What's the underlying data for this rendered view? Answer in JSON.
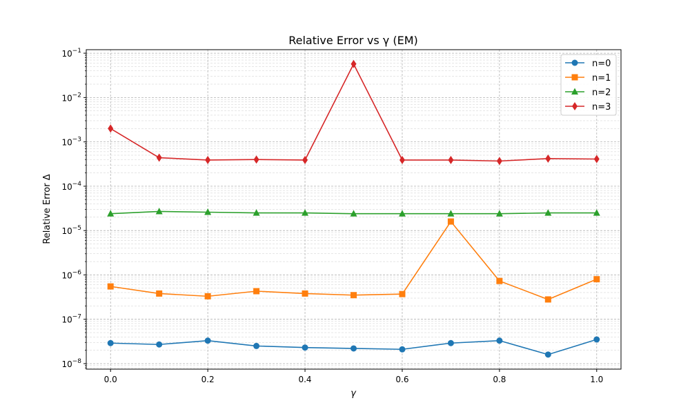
{
  "chart_data": {
    "type": "line",
    "title": "Relative Error vs γ (EM)",
    "xlabel": "γ",
    "ylabel": "Relative Error Δ",
    "y_scale": "log",
    "xlim": [
      -0.05,
      1.05
    ],
    "ylim": [
      7.5e-09,
      0.12
    ],
    "x_ticks": [
      "0.0",
      "0.2",
      "0.4",
      "0.6",
      "0.8",
      "1.0"
    ],
    "y_ticks": [
      {
        "mant": "10",
        "exp": "−8",
        "value": 1e-08
      },
      {
        "mant": "10",
        "exp": "−7",
        "value": 1e-07
      },
      {
        "mant": "10",
        "exp": "−6",
        "value": 1e-06
      },
      {
        "mant": "10",
        "exp": "−5",
        "value": 1e-05
      },
      {
        "mant": "10",
        "exp": "−4",
        "value": 0.0001
      },
      {
        "mant": "10",
        "exp": "−3",
        "value": 0.001
      },
      {
        "mant": "10",
        "exp": "−2",
        "value": 0.01
      },
      {
        "mant": "10",
        "exp": "−1",
        "value": 0.1
      }
    ],
    "grid": true,
    "legend_position": "top-right",
    "x": [
      0.0,
      0.1,
      0.2,
      0.3,
      0.4,
      0.5,
      0.6,
      0.7,
      0.8,
      0.9,
      1.0
    ],
    "series": [
      {
        "name": "n=0",
        "color": "#1f77b4",
        "marker": "circle",
        "values": [
          2.9e-08,
          2.7e-08,
          3.3e-08,
          2.5e-08,
          2.3e-08,
          2.2e-08,
          2.1e-08,
          2.9e-08,
          3.3e-08,
          1.6e-08,
          3.5e-08
        ]
      },
      {
        "name": "n=1",
        "color": "#ff7f0e",
        "marker": "square",
        "values": [
          5.5e-07,
          3.8e-07,
          3.3e-07,
          4.3e-07,
          3.8e-07,
          3.5e-07,
          3.7e-07,
          1.6e-05,
          7.3e-07,
          2.8e-07,
          8e-07
        ]
      },
      {
        "name": "n=2",
        "color": "#2ca02c",
        "marker": "triangle",
        "values": [
          2.4e-05,
          2.7e-05,
          2.6e-05,
          2.5e-05,
          2.5e-05,
          2.4e-05,
          2.4e-05,
          2.4e-05,
          2.4e-05,
          2.5e-05,
          2.5e-05
        ]
      },
      {
        "name": "n=3",
        "color": "#d62728",
        "marker": "diamond",
        "values": [
          0.002,
          0.00044,
          0.00039,
          0.0004,
          0.00039,
          0.057,
          0.00039,
          0.00039,
          0.00037,
          0.00042,
          0.00041
        ]
      }
    ]
  }
}
